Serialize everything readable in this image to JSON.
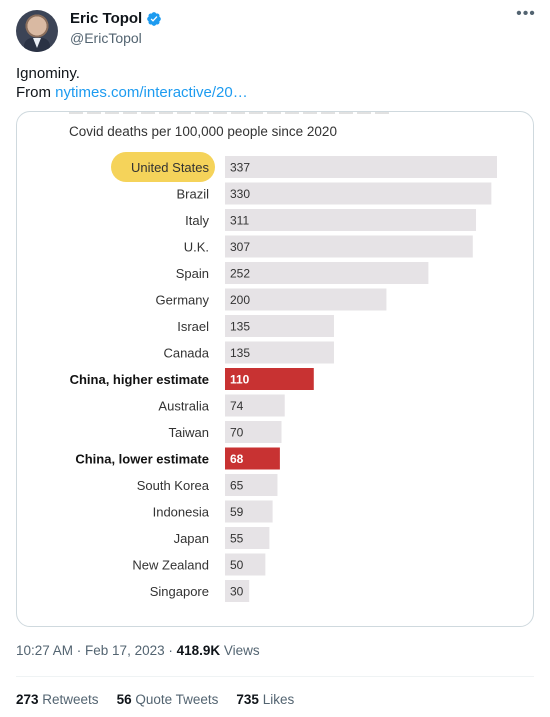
{
  "tweet": {
    "author": {
      "display_name": "Eric Topol",
      "handle": "@EricTopol",
      "verified_icon": "verified-badge-icon"
    },
    "text_line1": "Ignominy.",
    "text_line2_prefix": "From ",
    "link_text": "nytimes.com/interactive/20…",
    "time_date": "10:27 AM · Feb 17, 2023",
    "views_separator": " · ",
    "views_count": "418.9K",
    "views_label": " Views",
    "retweets_count": "273",
    "retweets_label": " Retweets",
    "quotes_count": "56",
    "quotes_label": " Quote Tweets",
    "likes_count": "735",
    "likes_label": " Likes"
  },
  "chart_subtitle": "Covid deaths per 100,000 people since 2020",
  "colors": {
    "bar_default": "#e6e3e6",
    "bar_highlight": "#c83232",
    "us_highlight": "#f5d35a",
    "link": "#1d9bf0",
    "verified": "#1d9bf0"
  },
  "chart_data": {
    "type": "bar",
    "orientation": "horizontal",
    "title": "Covid deaths per 100,000 people since 2020",
    "categories": [
      "United States",
      "Brazil",
      "Italy",
      "U.K.",
      "Spain",
      "Germany",
      "Israel",
      "Canada",
      "China, higher estimate",
      "Australia",
      "Taiwan",
      "China, lower estimate",
      "South Korea",
      "Indonesia",
      "Japan",
      "New Zealand",
      "Singapore"
    ],
    "values": [
      337,
      330,
      311,
      307,
      252,
      200,
      135,
      135,
      110,
      74,
      70,
      68,
      65,
      59,
      55,
      50,
      30
    ],
    "highlighted_bars": [
      "China, higher estimate",
      "China, lower estimate"
    ],
    "highlighted_label": "United States",
    "grid": false,
    "legend": "none"
  }
}
